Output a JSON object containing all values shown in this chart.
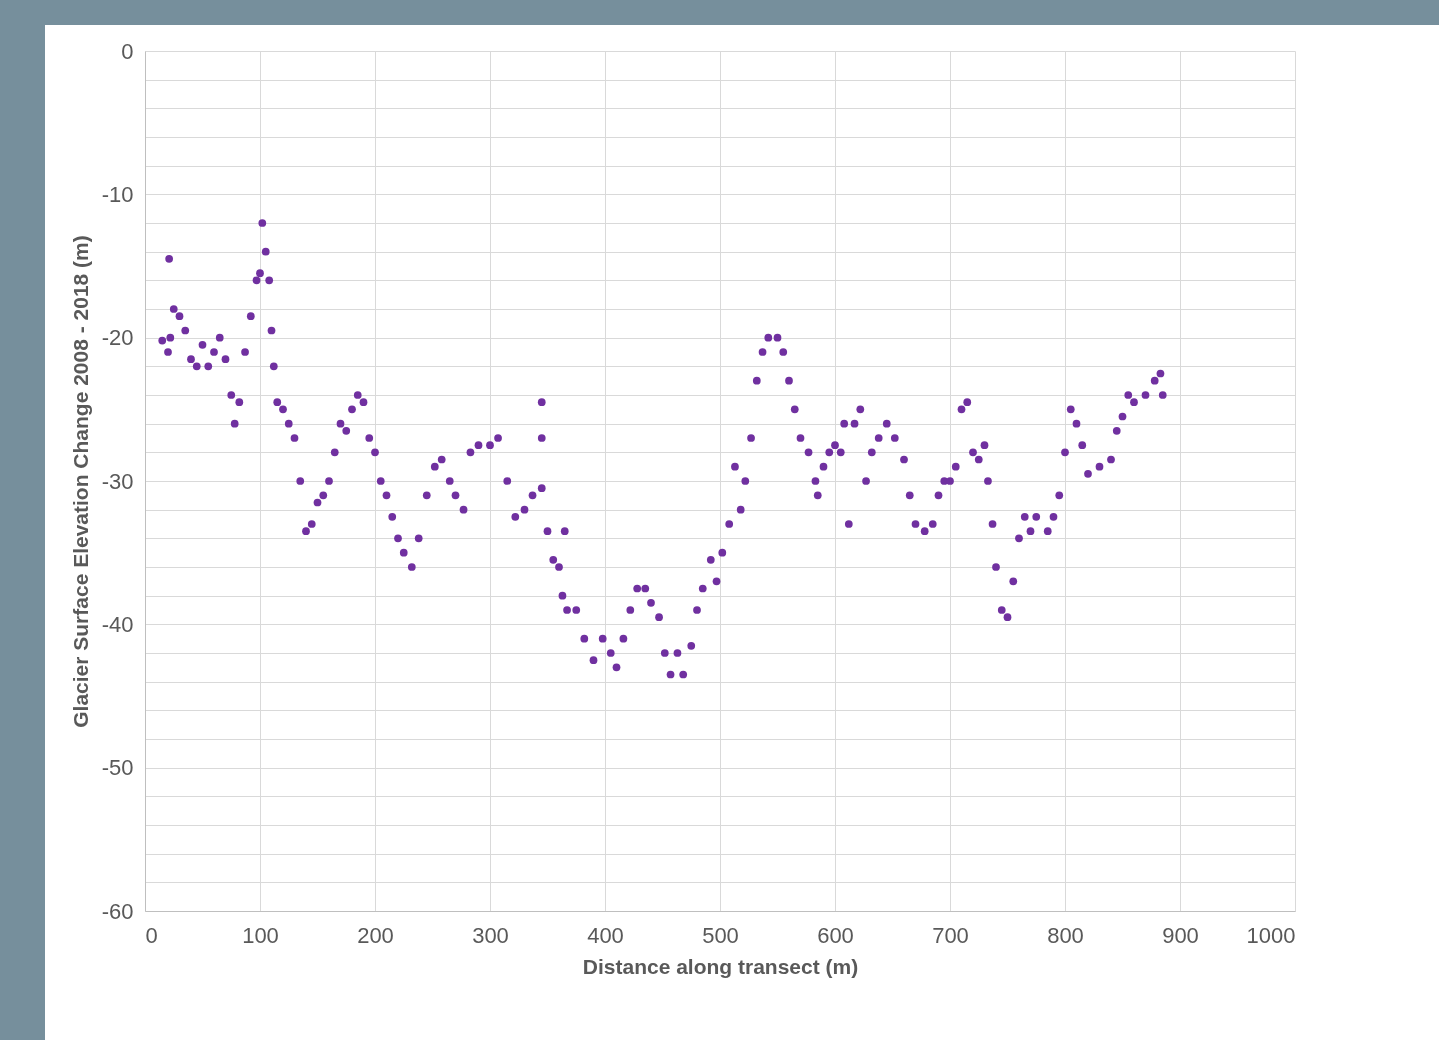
{
  "chart_data": {
    "type": "scatter",
    "xlabel": "Distance along transect (m)",
    "ylabel": "Glacier Surface Elevation Change 2008 - 2018 (m)",
    "xlim": [
      0,
      1000
    ],
    "xticks": [
      0,
      100,
      200,
      300,
      400,
      500,
      600,
      700,
      800,
      900,
      1000
    ],
    "ylim": [
      -60,
      0
    ],
    "yticks": [
      0,
      {
        "value": -2,
        "label": null
      },
      {
        "value": -4,
        "label": null
      },
      {
        "value": -6,
        "label": null
      },
      {
        "value": -8,
        "label": null
      },
      -10,
      {
        "value": -12,
        "label": null
      },
      {
        "value": -14,
        "label": null
      },
      {
        "value": -16,
        "label": null
      },
      {
        "value": -18,
        "label": null
      },
      -20,
      {
        "value": -22,
        "label": null
      },
      {
        "value": -24,
        "label": null
      },
      {
        "value": -26,
        "label": null
      },
      {
        "value": -28,
        "label": null
      },
      -30,
      {
        "value": -32,
        "label": null
      },
      {
        "value": -34,
        "label": null
      },
      {
        "value": -36,
        "label": null
      },
      {
        "value": -38,
        "label": null
      },
      -40,
      {
        "value": -42,
        "label": null
      },
      {
        "value": -44,
        "label": null
      },
      {
        "value": -46,
        "label": null
      },
      {
        "value": -48,
        "label": null
      },
      -50,
      {
        "value": -52,
        "label": null
      },
      {
        "value": -54,
        "label": null
      },
      {
        "value": -56,
        "label": null
      },
      {
        "value": -58,
        "label": null
      },
      -60
    ],
    "grid": true,
    "marker": "circle",
    "x": [
      15,
      20,
      21,
      22,
      25,
      30,
      35,
      40,
      45,
      50,
      55,
      60,
      65,
      70,
      75,
      78,
      82,
      87,
      92,
      97,
      100,
      102,
      105,
      108,
      110,
      112,
      115,
      120,
      125,
      130,
      135,
      140,
      145,
      150,
      155,
      160,
      165,
      170,
      175,
      180,
      185,
      190,
      195,
      200,
      205,
      210,
      215,
      220,
      225,
      232,
      238,
      245,
      252,
      258,
      265,
      270,
      277,
      283,
      290,
      300,
      307,
      315,
      322,
      330,
      337,
      345,
      345,
      345,
      350,
      355,
      360,
      363,
      365,
      367,
      375,
      382,
      390,
      398,
      405,
      410,
      416,
      422,
      428,
      435,
      440,
      447,
      452,
      457,
      463,
      468,
      475,
      480,
      485,
      492,
      497,
      502,
      508,
      513,
      518,
      522,
      527,
      532,
      537,
      542,
      550,
      555,
      560,
      565,
      570,
      577,
      583,
      585,
      590,
      595,
      600,
      605,
      608,
      612,
      617,
      622,
      627,
      632,
      638,
      645,
      652,
      660,
      665,
      670,
      678,
      685,
      690,
      695,
      700,
      705,
      710,
      715,
      720,
      725,
      730,
      733,
      737,
      740,
      745,
      750,
      755,
      760,
      765,
      770,
      775,
      785,
      790,
      795,
      800,
      805,
      810,
      815,
      820,
      830,
      840,
      845,
      850,
      855,
      860,
      870,
      878,
      883,
      885
    ],
    "series": [
      {
        "color": "#7030a0",
        "values": [
          -20.2,
          -21,
          -14.5,
          -20,
          -18,
          -18.5,
          -19.5,
          -21.5,
          -22,
          -20.5,
          -22,
          -21,
          -20,
          -21.5,
          -24,
          -26,
          -24.5,
          -21,
          -18.5,
          -16,
          -15.5,
          -12,
          -14,
          -16,
          -19.5,
          -22,
          -24.5,
          -25,
          -26,
          -27,
          -30,
          -33.5,
          -33,
          -31.5,
          -31,
          -30,
          -28,
          -26,
          -26.5,
          -25,
          -24,
          -24.5,
          -27,
          -28,
          -30,
          -31,
          -32.5,
          -34,
          -35,
          -36,
          -34,
          -31,
          -29,
          -28.5,
          -30,
          -31,
          -32,
          -28,
          -27.5,
          -27.5,
          -27,
          -30,
          -32.5,
          -32,
          -31,
          -30.5,
          -24.5,
          -27,
          -33.5,
          -35.5,
          -36,
          -38,
          -33.5,
          -39,
          -39,
          -41,
          -42.5,
          -41,
          -42,
          -43,
          -41,
          -39,
          -37.5,
          -37.5,
          -38.5,
          -39.5,
          -42,
          -43.5,
          -42,
          -43.5,
          -41.5,
          -39,
          -37.5,
          -35.5,
          -37,
          -35,
          -33,
          -29,
          -32,
          -30,
          -27,
          -23,
          -21,
          -20,
          -20,
          -21,
          -23,
          -25,
          -27,
          -28,
          -30,
          -31,
          -29,
          -28,
          -27.5,
          -28,
          -26,
          -33,
          -26,
          -25,
          -30,
          -28,
          -27,
          -26,
          -27,
          -28.5,
          -31,
          -33,
          -33.5,
          -33,
          -31,
          -30,
          -30,
          -29,
          -25,
          -24.5,
          -28,
          -28.5,
          -27.5,
          -30,
          -33,
          -36,
          -39,
          -39.5,
          -37,
          -34,
          -32.5,
          -33.5,
          -32.5,
          -33.5,
          -32.5,
          -31,
          -28,
          -25,
          -26,
          -27.5,
          -29.5,
          -29,
          -28.5,
          -26.5,
          -25.5,
          -24,
          -24.5,
          -24,
          -23,
          -22.5,
          -24
        ]
      }
    ]
  }
}
